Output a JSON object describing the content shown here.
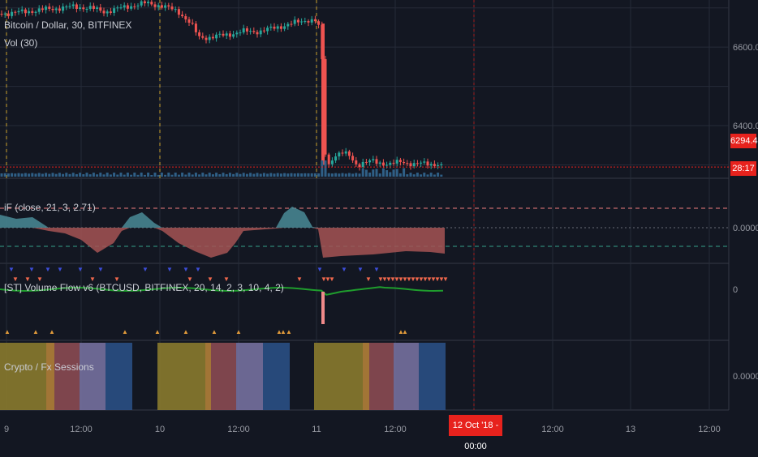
{
  "chart_data": [
    {
      "type": "candlestick",
      "title": "Bitcoin / Dollar, 30, BITFINEX",
      "sub_legend": "Vol (30)",
      "ylim": [
        6270,
        6720
      ],
      "y_ticks": [
        "6600.0",
        "6400.0"
      ],
      "y_tick_values": [
        6600,
        6400
      ],
      "last_price": "6294.4",
      "countdown": "28:17",
      "colors": {
        "up": "#26a69a",
        "down": "#ef5350",
        "price_line": "#e7221d",
        "volume": "#2f5f86"
      }
    },
    {
      "type": "area",
      "title": "iF (close, 21, 3, 2.71)",
      "y_ticks": [
        "0.0000"
      ],
      "colors": {
        "positive": "#4a8b96",
        "negative": "#a65454",
        "upper": "#f17e7e",
        "lower": "#36a28b"
      }
    },
    {
      "type": "line",
      "title": "[ST] Volume Flow v6 (BTCUSD, BITFINEX, 20, 14, 2, 3, 10, 4, 2)",
      "y_ticks": [
        "0"
      ],
      "colors": {
        "line": "#1f9d2d",
        "up_marker": "#f0684d",
        "down_marker": "#3d4ed8"
      }
    },
    {
      "type": "heatmap",
      "title": "Crypto / Fx Sessions",
      "y_ticks": [
        "0.0000"
      ],
      "colors": {
        "asia": "#8a7a2e",
        "overlap": "#b37f39",
        "europe": "#8b4a52",
        "us": "#76709e",
        "late": "#2a4f84"
      }
    }
  ],
  "x_axis": {
    "labels": [
      "9",
      "12:00",
      "10",
      "12:00",
      "11",
      "12:00",
      "12:00",
      "13",
      "12:00"
    ],
    "cursor_label": "12 Oct '18 - 00:00"
  }
}
